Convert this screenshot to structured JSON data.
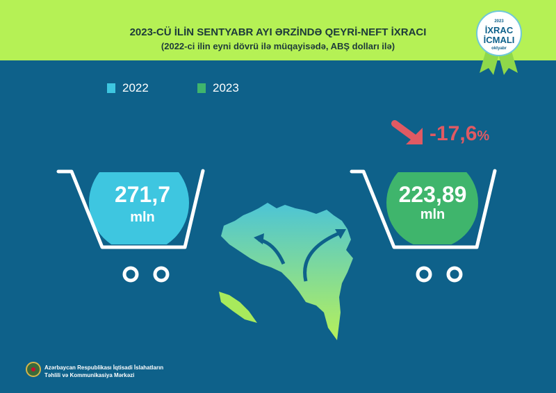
{
  "header": {
    "title": "2023-CÜ İLİN SENTYABR AYI ƏRZİNDƏ QEYRİ-NEFT İXRACI",
    "subtitle": "(2022-ci ilin eyni dövrü ilə müqayisədə, ABŞ dolları ilə)"
  },
  "badge": {
    "year": "2023",
    "line1": "İXRAC",
    "line2": "İCMALI",
    "month": "oktyabr"
  },
  "legend": [
    {
      "label": "2022",
      "color": "#3ec6e0"
    },
    {
      "label": "2023",
      "color": "#3fb56c"
    }
  ],
  "values": {
    "v2022": "271,7",
    "v2023": "223,89",
    "unit": "mln",
    "change": "-17,6",
    "change_unit": "%",
    "change_color": "#e05a63"
  },
  "footer": {
    "line1": "Azərbaycan Respublikası İqtisadi İslahatların",
    "line2": "Təhlili və Kommunikasiya Mərkəzi"
  },
  "chart_data": {
    "type": "bar",
    "title": "2023-CÜ İLİN SENTYABR AYI ƏRZİNDƏ QEYRİ-NEFT İXRACI",
    "subtitle": "(2022-ci ilin eyni dövrü ilə müqayisədə, ABŞ dolları ilə)",
    "categories": [
      "2022",
      "2023"
    ],
    "values": [
      271.7,
      223.89
    ],
    "unit": "mln",
    "change_percent": -17.6,
    "legend_position": "top-left"
  }
}
